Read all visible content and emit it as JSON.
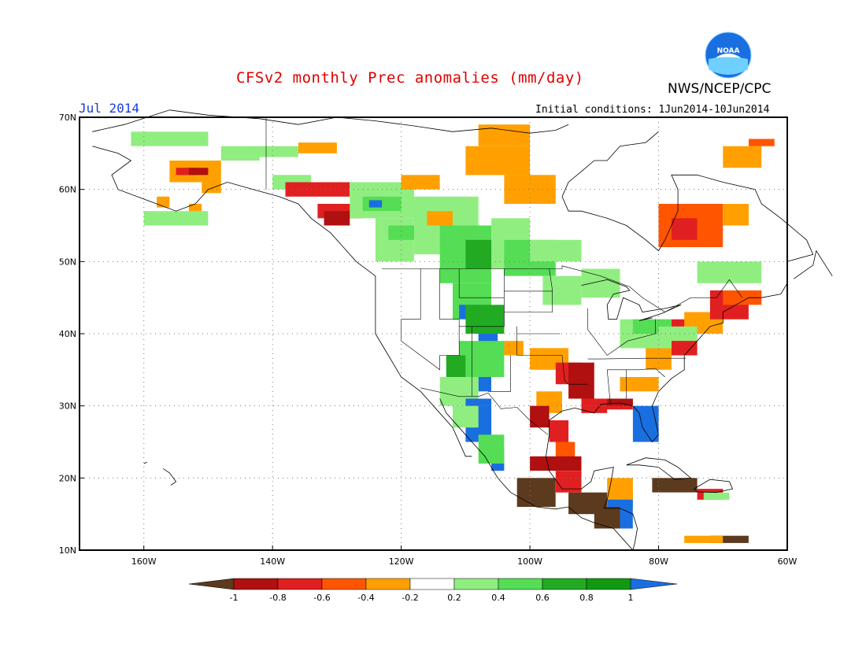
{
  "title": "CFSv2 monthly Prec anomalies (mm/day)",
  "agency": "NWS/NCEP/CPC",
  "logo_text": "NOAA",
  "period_label": "Jul 2014",
  "initial_conditions": "Initial conditions: 1Jun2014-10Jun2014",
  "map": {
    "lon_range": [
      -170,
      -60
    ],
    "lat_range": [
      10,
      70
    ],
    "lat_ticks": [
      "70N",
      "60N",
      "50N",
      "40N",
      "30N",
      "20N",
      "10N"
    ],
    "lon_ticks": [
      "160W",
      "140W",
      "120W",
      "100W",
      "80W",
      "60W"
    ],
    "grid": "dotted"
  },
  "colorbar": {
    "labels": [
      "-1",
      "-0.8",
      "-0.6",
      "-0.4",
      "-0.2",
      "0.2",
      "0.4",
      "0.6",
      "0.8",
      "1"
    ],
    "colors": [
      "#5c3a1e",
      "#b01010",
      "#e02020",
      "#ff5500",
      "#ffa000",
      "#ffffff",
      "#90ee80",
      "#55dd55",
      "#22aa22",
      "#119911",
      "#1a6fe0"
    ]
  }
}
